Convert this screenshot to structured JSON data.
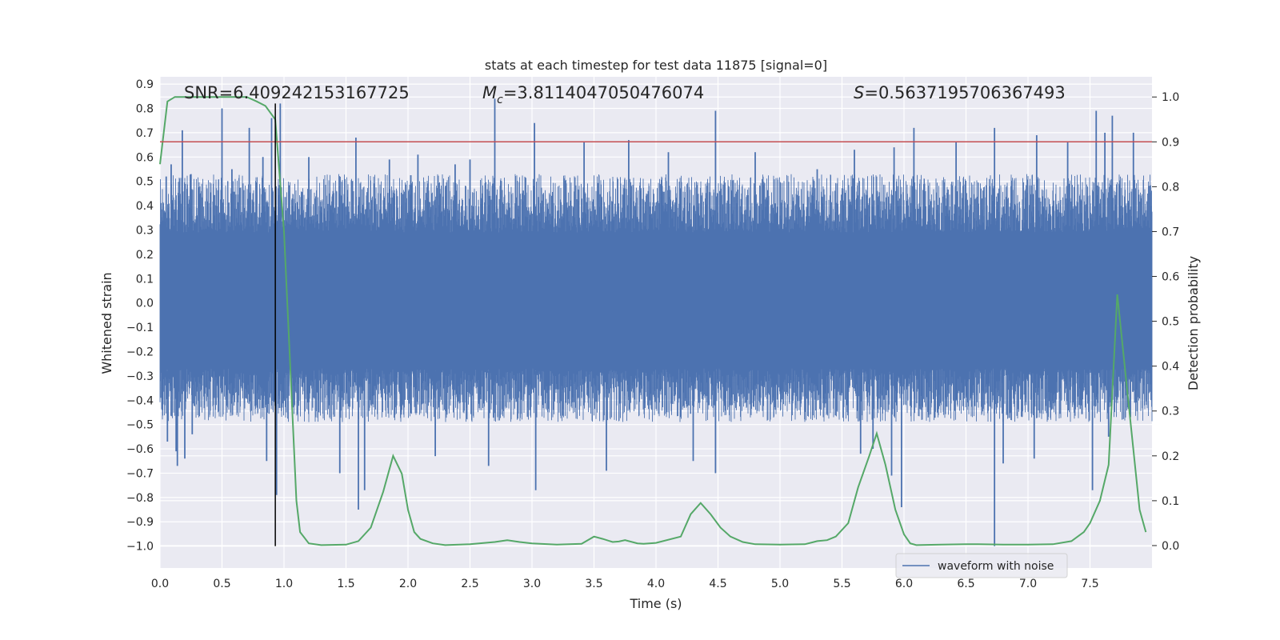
{
  "chart_data": {
    "type": "line",
    "title": "stats at each timestep for test data 11875 [signal=0]",
    "xlabel": "Time (s)",
    "ylabel": "Whitened strain",
    "y2label": "Detection probability",
    "xlim": [
      0.0,
      8.0
    ],
    "ylim": [
      -1.09,
      0.93
    ],
    "y2lim": [
      -0.05,
      1.045
    ],
    "xticks": [
      "0.0",
      "0.5",
      "1.0",
      "1.5",
      "2.0",
      "2.5",
      "3.0",
      "3.5",
      "4.0",
      "4.5",
      "5.0",
      "5.5",
      "6.0",
      "6.5",
      "7.0",
      "7.5"
    ],
    "yticks": [
      "0.9",
      "0.8",
      "0.7",
      "0.6",
      "0.5",
      "0.4",
      "0.3",
      "0.2",
      "0.1",
      "0.0",
      "−0.1",
      "−0.2",
      "−0.3",
      "−0.4",
      "−0.5",
      "−0.6",
      "−0.7",
      "−0.8",
      "−0.9",
      "−1.0"
    ],
    "y2ticks": [
      "1.0",
      "0.9",
      "0.8",
      "0.7",
      "0.6",
      "0.5",
      "0.4",
      "0.3",
      "0.2",
      "0.1",
      "0.0"
    ],
    "grid": true,
    "legend_position": "bottom-right",
    "annotations": {
      "snr": "SNR=6.409242153167725",
      "mc_symbol": "M",
      "mc_sub": "c",
      "mc_value": "=3.8114047050476074",
      "s_symbol": "S",
      "s_value": "=0.5637195706367493"
    },
    "threshold": {
      "y2": 0.9,
      "color": "#c44e52"
    },
    "marker_line": {
      "x": 0.93,
      "y_from": -1.0,
      "y_to": 0.82,
      "color": "#000000"
    },
    "series": [
      {
        "name": "waveform with noise",
        "color": "#4c72b0",
        "axis": "left",
        "style": "dense-noise",
        "core_envelope": [
          -0.27,
          0.29
        ],
        "spikes": [
          {
            "x": 0.05,
            "y": 0.52
          },
          {
            "x": 0.09,
            "y": 0.57
          },
          {
            "x": 0.18,
            "y": 0.71
          },
          {
            "x": 0.25,
            "y": 0.53
          },
          {
            "x": 0.5,
            "y": 0.8
          },
          {
            "x": 0.58,
            "y": 0.55
          },
          {
            "x": 0.72,
            "y": 0.72
          },
          {
            "x": 0.83,
            "y": 0.6
          },
          {
            "x": 0.9,
            "y": 0.76
          },
          {
            "x": 0.97,
            "y": 0.82
          },
          {
            "x": 1.2,
            "y": 0.6
          },
          {
            "x": 1.58,
            "y": 0.68
          },
          {
            "x": 1.85,
            "y": 0.59
          },
          {
            "x": 2.08,
            "y": 0.61
          },
          {
            "x": 2.38,
            "y": 0.57
          },
          {
            "x": 2.5,
            "y": 0.59
          },
          {
            "x": 2.7,
            "y": 0.84
          },
          {
            "x": 3.02,
            "y": 0.74
          },
          {
            "x": 3.42,
            "y": 0.66
          },
          {
            "x": 3.78,
            "y": 0.67
          },
          {
            "x": 4.1,
            "y": 0.62
          },
          {
            "x": 4.48,
            "y": 0.79
          },
          {
            "x": 4.8,
            "y": 0.62
          },
          {
            "x": 5.3,
            "y": 0.55
          },
          {
            "x": 5.6,
            "y": 0.63
          },
          {
            "x": 5.92,
            "y": 0.64
          },
          {
            "x": 6.08,
            "y": 0.72
          },
          {
            "x": 6.42,
            "y": 0.66
          },
          {
            "x": 6.73,
            "y": 0.72
          },
          {
            "x": 7.07,
            "y": 0.69
          },
          {
            "x": 7.32,
            "y": 0.66
          },
          {
            "x": 7.55,
            "y": 0.79
          },
          {
            "x": 7.62,
            "y": 0.7
          },
          {
            "x": 7.68,
            "y": 0.77
          },
          {
            "x": 7.85,
            "y": 0.7
          },
          {
            "x": 0.06,
            "y": -0.57
          },
          {
            "x": 0.13,
            "y": -0.61
          },
          {
            "x": 0.14,
            "y": -0.67
          },
          {
            "x": 0.2,
            "y": -0.64
          },
          {
            "x": 0.26,
            "y": -0.54
          },
          {
            "x": 0.86,
            "y": -0.65
          },
          {
            "x": 0.94,
            "y": -0.79
          },
          {
            "x": 1.45,
            "y": -0.7
          },
          {
            "x": 1.6,
            "y": -0.85
          },
          {
            "x": 1.65,
            "y": -0.77
          },
          {
            "x": 2.22,
            "y": -0.63
          },
          {
            "x": 2.65,
            "y": -0.67
          },
          {
            "x": 3.03,
            "y": -0.77
          },
          {
            "x": 3.6,
            "y": -0.69
          },
          {
            "x": 4.3,
            "y": -0.65
          },
          {
            "x": 4.48,
            "y": -0.7
          },
          {
            "x": 5.65,
            "y": -0.62
          },
          {
            "x": 5.75,
            "y": -0.6
          },
          {
            "x": 5.9,
            "y": -0.71
          },
          {
            "x": 5.98,
            "y": -0.84
          },
          {
            "x": 6.73,
            "y": -1.0
          },
          {
            "x": 6.8,
            "y": -0.66
          },
          {
            "x": 7.05,
            "y": -0.64
          },
          {
            "x": 7.52,
            "y": -0.77
          },
          {
            "x": 7.65,
            "y": -0.55
          }
        ]
      },
      {
        "name": "",
        "color": "#55a868",
        "axis": "right",
        "x": [
          0.0,
          0.06,
          0.12,
          0.3,
          0.5,
          0.7,
          0.78,
          0.85,
          0.93,
          1.0,
          1.05,
          1.1,
          1.13,
          1.2,
          1.3,
          1.5,
          1.6,
          1.7,
          1.8,
          1.88,
          1.95,
          2.0,
          2.05,
          2.1,
          2.2,
          2.3,
          2.5,
          2.7,
          2.8,
          2.9,
          3.0,
          3.2,
          3.4,
          3.5,
          3.57,
          3.65,
          3.7,
          3.75,
          3.85,
          3.9,
          4.0,
          4.2,
          4.28,
          4.36,
          4.44,
          4.52,
          4.6,
          4.7,
          4.8,
          5.0,
          5.2,
          5.3,
          5.38,
          5.45,
          5.55,
          5.63,
          5.72,
          5.78,
          5.85,
          5.93,
          6.0,
          6.05,
          6.1,
          6.3,
          6.5,
          6.6,
          6.8,
          7.0,
          7.2,
          7.35,
          7.45,
          7.5,
          7.58,
          7.65,
          7.72,
          7.78,
          7.9,
          7.95
        ],
        "y": [
          0.85,
          0.99,
          1.0,
          1.0,
          1.0,
          1.0,
          0.99,
          0.98,
          0.95,
          0.7,
          0.4,
          0.1,
          0.03,
          0.005,
          0.001,
          0.002,
          0.01,
          0.04,
          0.12,
          0.2,
          0.16,
          0.08,
          0.03,
          0.015,
          0.005,
          0.001,
          0.003,
          0.008,
          0.012,
          0.008,
          0.005,
          0.002,
          0.004,
          0.02,
          0.015,
          0.008,
          0.009,
          0.012,
          0.005,
          0.004,
          0.006,
          0.02,
          0.07,
          0.095,
          0.07,
          0.04,
          0.02,
          0.008,
          0.003,
          0.002,
          0.003,
          0.01,
          0.012,
          0.02,
          0.05,
          0.13,
          0.2,
          0.25,
          0.18,
          0.08,
          0.025,
          0.005,
          0.001,
          0.002,
          0.003,
          0.003,
          0.002,
          0.002,
          0.003,
          0.01,
          0.03,
          0.05,
          0.1,
          0.18,
          0.56,
          0.4,
          0.08,
          0.03
        ]
      }
    ]
  }
}
